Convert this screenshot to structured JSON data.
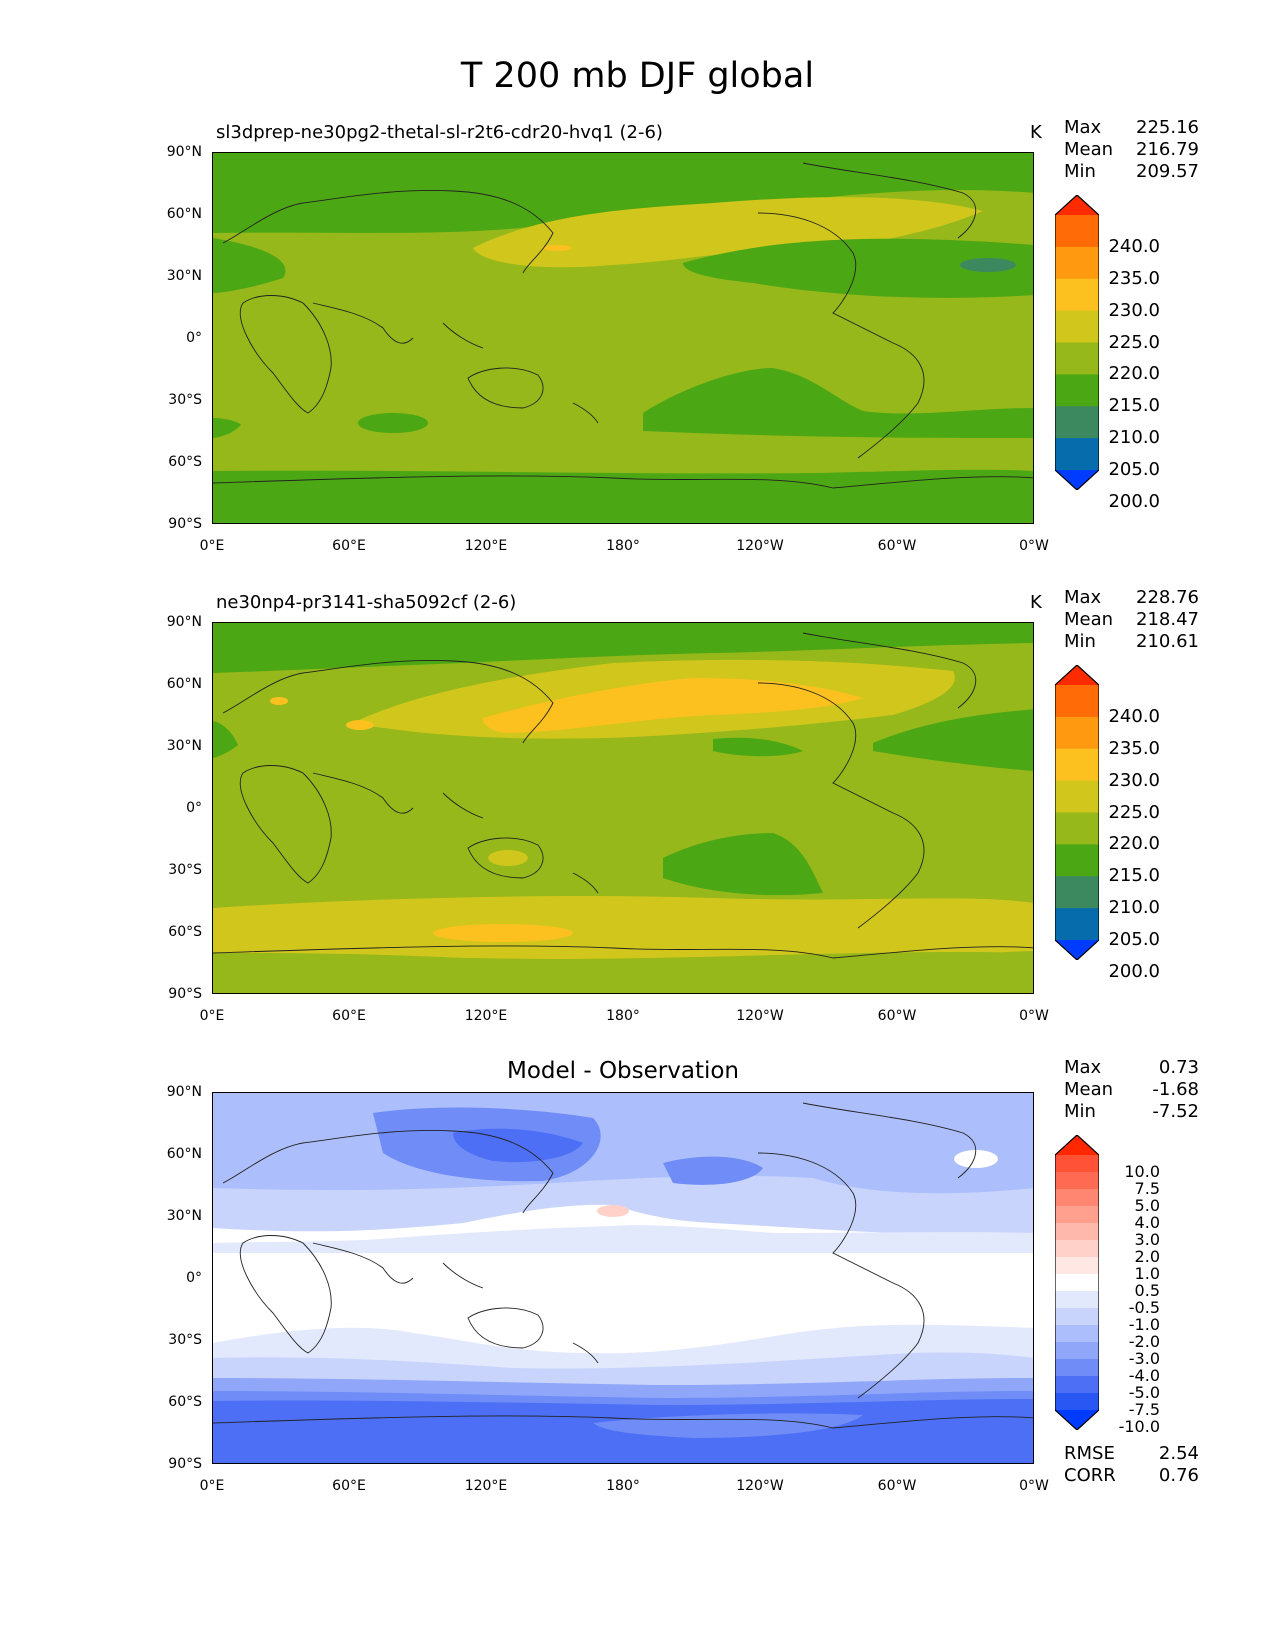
{
  "title": "T 200 mb DJF global",
  "x_ticks": [
    "0°E",
    "60°E",
    "120°E",
    "180°",
    "120°W",
    "60°W",
    "0°W"
  ],
  "y_ticks": [
    "90°N",
    "60°N",
    "30°N",
    "0°",
    "30°S",
    "60°S",
    "90°S"
  ],
  "panels": [
    {
      "name": "test",
      "subtitle": "sl3dprep-ne30pg2-thetal-sl-r2t6-cdr20-hvq1 (2-6)",
      "units": "K",
      "stats": {
        "max_label": "Max",
        "max": "225.16",
        "mean_label": "Mean",
        "mean": "216.79",
        "min_label": "Min",
        "min": "209.57"
      },
      "colorbar": {
        "levels": [
          "240.0",
          "235.0",
          "230.0",
          "225.0",
          "220.0",
          "215.0",
          "210.0",
          "205.0",
          "200.0"
        ],
        "colors": [
          "#ff2b00",
          "#ff6b06",
          "#ff9a10",
          "#fcc11f",
          "#d0c61c",
          "#96b81a",
          "#4ca714",
          "#3c8960",
          "#066cac",
          "#003cff"
        ]
      }
    },
    {
      "name": "reference",
      "subtitle": "ne30np4-pr3141-sha5092cf (2-6)",
      "units": "K",
      "stats": {
        "max_label": "Max",
        "max": "228.76",
        "mean_label": "Mean",
        "mean": "218.47",
        "min_label": "Min",
        "min": "210.61"
      },
      "colorbar": {
        "levels": [
          "240.0",
          "235.0",
          "230.0",
          "225.0",
          "220.0",
          "215.0",
          "210.0",
          "205.0",
          "200.0"
        ],
        "colors": [
          "#ff2b00",
          "#ff6b06",
          "#ff9a10",
          "#fcc11f",
          "#d0c61c",
          "#96b81a",
          "#4ca714",
          "#3c8960",
          "#066cac",
          "#003cff"
        ]
      }
    },
    {
      "name": "difference",
      "subtitle": "Model - Observation",
      "units": "",
      "stats": {
        "max_label": "Max",
        "max": "0.73",
        "mean_label": "Mean",
        "mean": "-1.68",
        "min_label": "Min",
        "min": "-7.52"
      },
      "metrics": {
        "rmse_label": "RMSE",
        "rmse": "2.54",
        "corr_label": "CORR",
        "corr": "0.76"
      },
      "colorbar": {
        "levels": [
          "10.0",
          "7.5",
          "5.0",
          "4.0",
          "3.0",
          "2.0",
          "1.0",
          "0.5",
          "-0.5",
          "-1.0",
          "-2.0",
          "-3.0",
          "-4.0",
          "-5.0",
          "-7.5",
          "-10.0"
        ],
        "colors": [
          "#ff2800",
          "#ff5236",
          "#ff6b52",
          "#ff8670",
          "#ff9f8e",
          "#ffb9ac",
          "#ffd1c8",
          "#ffe8e3",
          "#ffffff",
          "#e3e9fd",
          "#c8d4fc",
          "#acbefb",
          "#8fa6f9",
          "#6f8cf7",
          "#4c6ff5",
          "#2857f3",
          "#003cff"
        ]
      }
    }
  ]
}
